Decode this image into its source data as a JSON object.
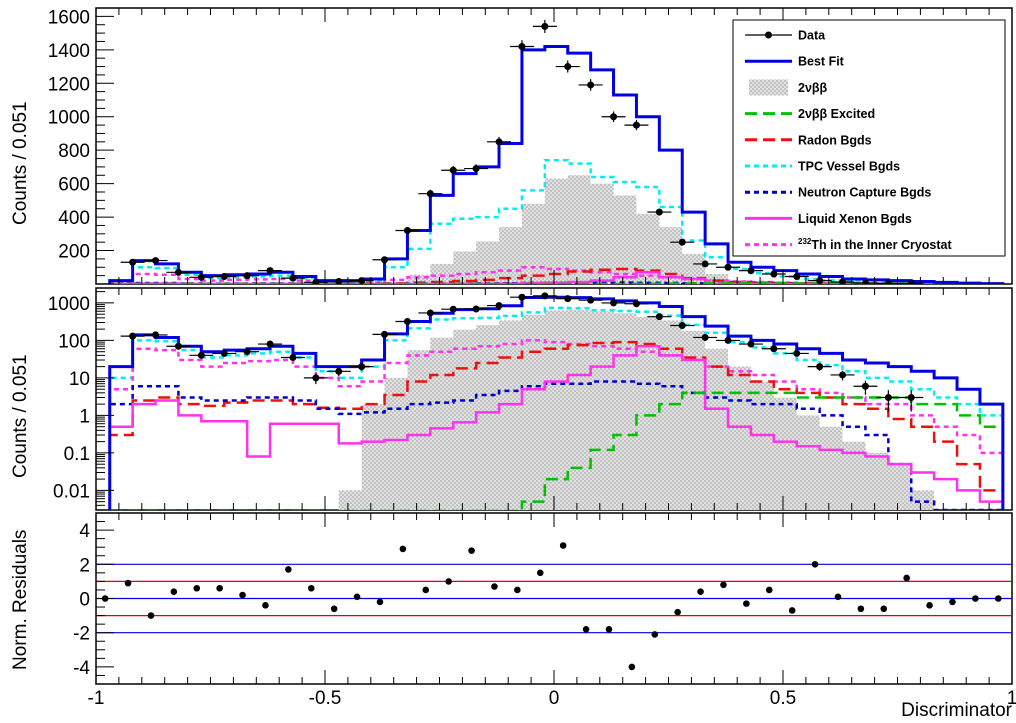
{
  "figure": {
    "xlabel": "Discriminator",
    "top_ylabel": "Counts / 0.051",
    "middle_ylabel": "Counts / 0.051",
    "bottom_ylabel": "Norm. Residuals"
  },
  "legend": {
    "placement": "top-right",
    "entries": [
      {
        "label": "Data",
        "style": "marker",
        "color": "#000000"
      },
      {
        "label": "Best Fit",
        "style": "solid",
        "color": "#0000e6"
      },
      {
        "label": "2νββ",
        "style": "hatched-fill",
        "color": "#c8c8c8"
      },
      {
        "label": "2νββ Excited",
        "style": "dashed",
        "color": "#00c000"
      },
      {
        "label": "Radon Bgds",
        "style": "dashed",
        "color": "#ee1010"
      },
      {
        "label": "TPC Vessel Bgds",
        "style": "dotted",
        "color": "#00eeee"
      },
      {
        "label": "Neutron Capture Bgds",
        "style": "dotted",
        "color": "#0000cc"
      },
      {
        "label": "Liquid Xenon Bgds",
        "style": "solid",
        "color": "#ff33ee"
      },
      {
        "label": "Th in the Inner Cryostat",
        "sup": "232",
        "style": "dotted",
        "color": "#ff33ee"
      }
    ]
  },
  "chart_data": [
    {
      "type": "line",
      "panel": "top",
      "subtype": "histogram",
      "xlim": [
        -1,
        1
      ],
      "ylim": [
        0,
        1650
      ],
      "yticks": [
        200,
        400,
        600,
        800,
        1000,
        1200,
        1400,
        1600
      ],
      "ylabel": "Counts / 0.051",
      "bin_edges": [
        -0.97,
        -0.92,
        -0.87,
        -0.82,
        -0.77,
        -0.72,
        -0.67,
        -0.62,
        -0.57,
        -0.52,
        -0.47,
        -0.42,
        -0.37,
        -0.32,
        -0.27,
        -0.22,
        -0.17,
        -0.12,
        -0.07,
        -0.02,
        0.03,
        0.08,
        0.13,
        0.18,
        0.23,
        0.28,
        0.33,
        0.38,
        0.43,
        0.48,
        0.53,
        0.58,
        0.63,
        0.68,
        0.73,
        0.78,
        0.83,
        0.88,
        0.93,
        0.98
      ],
      "series": [
        {
          "name": "Best Fit",
          "values": [
            20,
            140,
            120,
            70,
            50,
            55,
            60,
            70,
            45,
            20,
            20,
            30,
            150,
            320,
            530,
            660,
            700,
            840,
            1400,
            1420,
            1380,
            1280,
            1130,
            1000,
            800,
            430,
            240,
            130,
            100,
            80,
            60,
            45,
            30,
            25,
            20,
            15,
            10,
            5,
            2
          ]
        },
        {
          "name": "2νββ",
          "values": [
            0,
            0,
            0,
            0,
            0,
            0,
            0,
            0,
            0,
            0,
            0.01,
            2,
            10,
            55,
            120,
            195,
            255,
            340,
            480,
            630,
            650,
            600,
            530,
            420,
            340,
            180,
            60,
            20,
            8,
            3,
            1,
            0.5,
            0.2,
            0.1,
            0.05,
            0.01,
            0,
            0,
            0
          ]
        },
        {
          "name": "TPC Vessel Bgds",
          "values": [
            10,
            100,
            95,
            55,
            35,
            40,
            45,
            50,
            35,
            15,
            10,
            20,
            100,
            210,
            360,
            390,
            400,
            450,
            560,
            740,
            720,
            640,
            610,
            580,
            460,
            260,
            160,
            90,
            65,
            45,
            30,
            22,
            15,
            10,
            8,
            5,
            3,
            2,
            1
          ]
        },
        {
          "name": "Th in the Inner Cryostat",
          "values": [
            5,
            60,
            55,
            30,
            20,
            25,
            28,
            30,
            20,
            10,
            6,
            8,
            25,
            40,
            50,
            60,
            70,
            80,
            100,
            90,
            80,
            70,
            60,
            50,
            40,
            30,
            20,
            15,
            12,
            8,
            5,
            4,
            3,
            2,
            2,
            1,
            0.5,
            0.3,
            0.1
          ]
        },
        {
          "name": "Radon Bgds",
          "values": [
            0.3,
            2.5,
            3.0,
            2.0,
            1.8,
            2.2,
            2.5,
            2.5,
            2.0,
            1.6,
            1.5,
            2.0,
            3.5,
            8,
            12,
            18,
            25,
            35,
            50,
            60,
            75,
            85,
            90,
            80,
            60,
            35,
            20,
            12,
            8,
            5,
            4,
            3,
            2,
            1.5,
            0.8,
            0.5,
            0.2,
            0.05,
            0.01
          ]
        },
        {
          "name": "Neutron Capture Bgds",
          "values": [
            2,
            6,
            6,
            3,
            2.5,
            2.5,
            3,
            3,
            2.5,
            1.5,
            1.1,
            1.2,
            1.5,
            2.0,
            2.2,
            2.5,
            3.5,
            4.5,
            6,
            7,
            7,
            8,
            8,
            7,
            6,
            4,
            3,
            2.5,
            2,
            2,
            1.5,
            1.0,
            0.5,
            0.3,
            0.05,
            0.005,
            0.003,
            0.003,
            0.003
          ]
        },
        {
          "name": "Liquid Xenon Bgds",
          "values": [
            0.5,
            2.0,
            2.5,
            1.0,
            0.7,
            0.7,
            0.08,
            0.6,
            0.6,
            0.6,
            0.18,
            0.2,
            0.22,
            0.3,
            0.45,
            0.65,
            1.2,
            2.0,
            5,
            8,
            12,
            20,
            40,
            70,
            40,
            30,
            1.5,
            0.5,
            0.3,
            0.2,
            0.15,
            0.12,
            0.1,
            0.08,
            0.05,
            0.03,
            0.02,
            0.01,
            0.005
          ]
        },
        {
          "name": "2νββ Excited",
          "values": [
            0,
            0,
            0,
            0,
            0,
            0,
            0,
            0,
            0,
            0,
            0,
            0,
            0.0,
            0.0,
            0.0,
            0.0,
            0.0,
            0.0,
            0.005,
            0.02,
            0.04,
            0.12,
            0.3,
            1.0,
            2.0,
            4,
            4,
            4,
            4,
            4,
            3,
            3,
            3,
            3,
            3,
            2,
            2,
            1,
            0.5
          ]
        }
      ],
      "data_points": {
        "name": "Data",
        "x": [
          -0.92,
          -0.87,
          -0.82,
          -0.77,
          -0.72,
          -0.67,
          -0.62,
          -0.57,
          -0.52,
          -0.47,
          -0.42,
          -0.37,
          -0.32,
          -0.27,
          -0.22,
          -0.17,
          -0.12,
          -0.07,
          -0.02,
          0.03,
          0.08,
          0.13,
          0.18,
          0.23,
          0.28,
          0.33,
          0.38,
          0.43,
          0.48,
          0.53,
          0.58,
          0.63,
          0.68,
          0.73,
          0.78
        ],
        "y": [
          130,
          140,
          70,
          40,
          45,
          50,
          80,
          35,
          10,
          15,
          20,
          145,
          320,
          540,
          680,
          690,
          850,
          1420,
          1540,
          1300,
          1190,
          1000,
          950,
          430,
          250,
          120,
          100,
          80,
          60,
          45,
          20,
          12,
          6,
          3,
          3
        ]
      }
    },
    {
      "type": "line",
      "panel": "middle",
      "subtype": "histogram",
      "yscale": "log",
      "xlim": [
        -1,
        1
      ],
      "ylim": [
        0.003,
        2500
      ],
      "yticks": [
        "0.01",
        "0.1",
        "1",
        "10",
        "100",
        "1000"
      ],
      "ylabel": "Counts / 0.051",
      "note": "Same histograms and data as top panel, plotted on a log y-axis."
    },
    {
      "type": "scatter",
      "panel": "bottom",
      "xlim": [
        -1,
        1
      ],
      "ylim": [
        -5,
        5
      ],
      "yticks": [
        -4,
        -2,
        0,
        2,
        4
      ],
      "xticks": [
        -1,
        -0.5,
        0,
        0.5,
        1
      ],
      "ylabel": "Norm. Residuals",
      "xlabel": "Discriminator",
      "reference_lines": [
        {
          "y": 2,
          "color": "#0000e6"
        },
        {
          "y": 1,
          "color": "#e00000"
        },
        {
          "y": 0,
          "color": "#0000e6"
        },
        {
          "y": -1,
          "color": "#e00000"
        },
        {
          "y": -2,
          "color": "#0000e6"
        }
      ],
      "x": [
        -0.98,
        -0.93,
        -0.88,
        -0.83,
        -0.78,
        -0.73,
        -0.68,
        -0.63,
        -0.58,
        -0.53,
        -0.48,
        -0.43,
        -0.38,
        -0.33,
        -0.28,
        -0.23,
        -0.18,
        -0.13,
        -0.08,
        -0.03,
        0.02,
        0.07,
        0.12,
        0.17,
        0.22,
        0.27,
        0.32,
        0.37,
        0.42,
        0.47,
        0.52,
        0.57,
        0.62,
        0.67,
        0.72,
        0.77,
        0.82,
        0.87,
        0.92,
        0.97
      ],
      "y": [
        0.0,
        0.9,
        -1.0,
        0.4,
        0.6,
        0.6,
        0.2,
        -0.4,
        1.7,
        0.6,
        -0.6,
        0.1,
        -0.2,
        2.9,
        0.5,
        1.0,
        2.8,
        0.7,
        0.5,
        1.5,
        3.1,
        -1.8,
        -1.8,
        -4.0,
        -2.1,
        -0.8,
        0.4,
        0.8,
        -0.3,
        0.5,
        -0.7,
        2.0,
        0.1,
        -0.6,
        -0.6,
        1.2,
        -0.4,
        -0.2,
        0.0,
        0.0
      ]
    }
  ]
}
